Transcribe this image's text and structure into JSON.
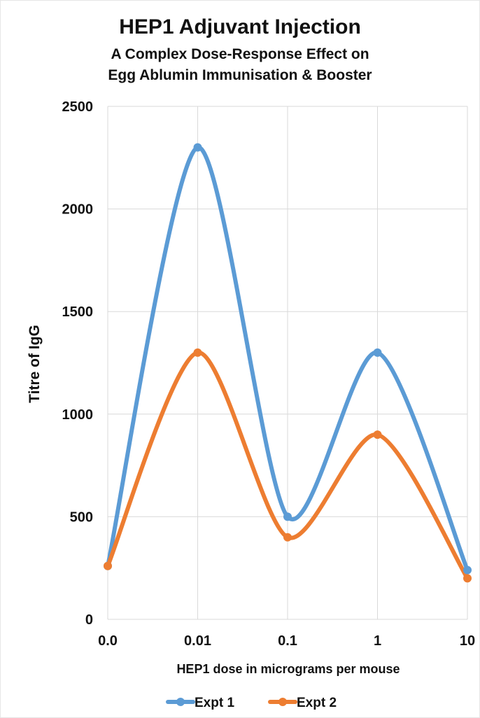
{
  "chart_data": {
    "type": "line",
    "title": "HEP1 Adjuvant Injection",
    "subtitle": [
      "A Complex Dose-Response Effect on",
      "Egg Ablumin Immunisation & Booster"
    ],
    "xlabel": "HEP1 dose in micrograms per mouse",
    "ylabel": "Titre of IgG",
    "x_ticks": [
      "0.0",
      "0.01",
      "0.1",
      "1",
      "10"
    ],
    "y_ticks": [
      "0",
      "500",
      "1000",
      "1500",
      "2000",
      "2500"
    ],
    "ylim": [
      0,
      2500
    ],
    "grid": true,
    "legend": "bottom",
    "x": [
      "0.0",
      "0.01",
      "0.1",
      "1",
      "10"
    ],
    "series": [
      {
        "name": "Expt 1",
        "color": "#5b9bd5",
        "values": [
          260,
          2300,
          500,
          1300,
          240
        ]
      },
      {
        "name": "Expt 2",
        "color": "#ed7d31",
        "values": [
          260,
          1300,
          400,
          900,
          200
        ]
      }
    ]
  }
}
